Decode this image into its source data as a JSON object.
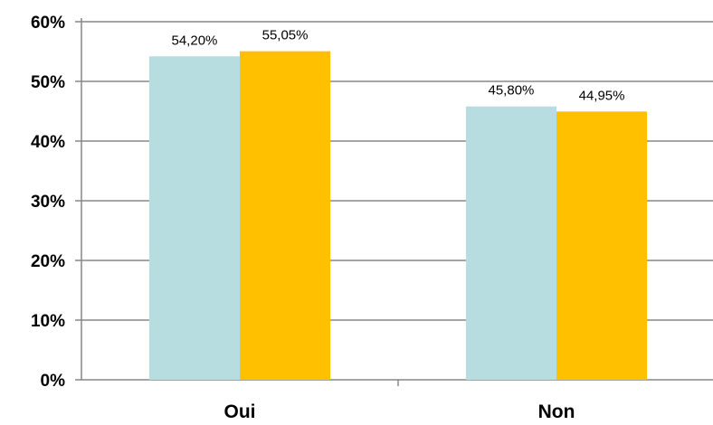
{
  "chart_data": {
    "type": "bar",
    "categories": [
      "Oui",
      "Non"
    ],
    "series": [
      {
        "values": [
          54.2,
          45.8
        ],
        "labels": [
          "54,20%",
          "45,80%"
        ],
        "color": "#b7dde1"
      },
      {
        "values": [
          55.05,
          44.95
        ],
        "labels": [
          "55,05%",
          "44,95%"
        ],
        "color": "#ffc000"
      }
    ],
    "ylim": [
      0,
      60
    ],
    "yticks": [
      0,
      10,
      20,
      30,
      40,
      50,
      60
    ],
    "ytick_labels": [
      "0%",
      "10%",
      "20%",
      "30%",
      "40%",
      "50%",
      "60%"
    ],
    "grid": true,
    "gridline_color": "#878787",
    "axis_color": "#878787"
  }
}
